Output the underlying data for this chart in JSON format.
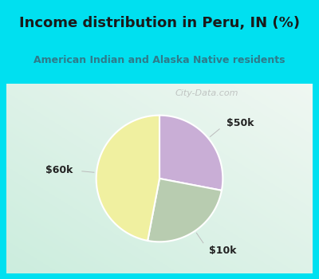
{
  "title": "Income distribution in Peru, IN (%)",
  "subtitle": "American Indian and Alaska Native residents",
  "title_color": "#1a1a1a",
  "subtitle_color": "#2e7b8b",
  "slices": [
    {
      "label": "$50k",
      "value": 28,
      "color": "#c9aed6"
    },
    {
      "label": "$10k",
      "value": 25,
      "color": "#b8ccb0"
    },
    {
      "label": "$60k",
      "value": 47,
      "color": "#f0f0a0"
    }
  ],
  "bg_border": "#00e0f0",
  "bg_chart_tl": "#e8f8f4",
  "bg_chart_br": "#d0eedf",
  "watermark": "City-Data.com",
  "start_angle": 90,
  "label_fontsize": 9,
  "label_color": "#222222",
  "title_fontsize": 13,
  "subtitle_fontsize": 9
}
